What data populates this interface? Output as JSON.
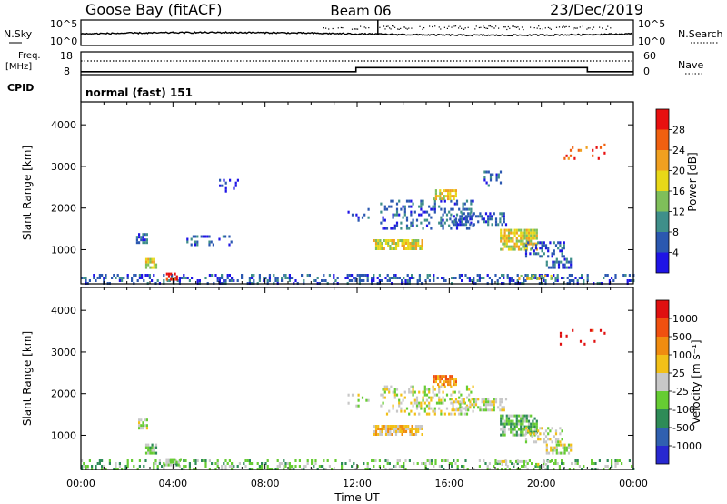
{
  "header": {
    "station": "Goose Bay (fitACF)",
    "beam": "Beam 06",
    "date": "23/Dec/2019"
  },
  "noise_panel": {
    "left_label": "N.Sky",
    "right_label": "N.Search",
    "left_ticks": [
      "10^5",
      "10^0"
    ],
    "right_ticks": [
      "10^5",
      "10^0"
    ]
  },
  "freq_panel": {
    "left_label_line1": "Freq.",
    "left_label_line2": "[MHz]",
    "right_label": "Nave",
    "left_ticks": [
      "18",
      "8"
    ],
    "right_ticks": [
      "60",
      "0"
    ],
    "freq_range": [
      8,
      18
    ],
    "nave_range": [
      0,
      60
    ]
  },
  "cpid": {
    "label": "CPID",
    "value": "normal (fast) 151"
  },
  "time_axis": {
    "label": "Time UT",
    "ticks": [
      "00:00",
      "04:00",
      "08:00",
      "12:00",
      "16:00",
      "20:00",
      "00:00"
    ]
  },
  "chart_data": [
    {
      "type": "heatmap",
      "name": "power",
      "ylabel": "Slant Range [km]",
      "xlabel": "Time UT",
      "xlim_hours": [
        0,
        24
      ],
      "ylim": [
        180,
        4550
      ],
      "yticks": [
        "1000",
        "2000",
        "3000",
        "4000"
      ],
      "colorbar": {
        "label": "Power [dB]",
        "ticks": [
          "4",
          "8",
          "12",
          "16",
          "20",
          "24",
          "28"
        ],
        "range": [
          0,
          32
        ]
      },
      "colors": [
        "#1f14e6",
        "#2b58b0",
        "#3f8f8a",
        "#7fbf5a",
        "#e8d818",
        "#f0a020",
        "#f06010",
        "#e81010"
      ],
      "regions": [
        {
          "t": [
            0.0,
            24.0
          ],
          "r": [
            200,
            420
          ],
          "level": 1,
          "density": 0.35
        },
        {
          "t": [
            2.4,
            2.9
          ],
          "r": [
            1150,
            1400
          ],
          "level": 1,
          "density": 0.5
        },
        {
          "t": [
            2.8,
            3.3
          ],
          "r": [
            600,
            800
          ],
          "level": 4,
          "density": 0.8
        },
        {
          "t": [
            3.7,
            4.2
          ],
          "r": [
            280,
            450
          ],
          "level": 7,
          "density": 0.7
        },
        {
          "t": [
            4.5,
            6.5
          ],
          "r": [
            1150,
            1350
          ],
          "level": 1,
          "density": 0.2
        },
        {
          "t": [
            6.0,
            7.0
          ],
          "r": [
            2400,
            2700
          ],
          "level": 0,
          "density": 0.15
        },
        {
          "t": [
            11.5,
            12.5
          ],
          "r": [
            1700,
            2000
          ],
          "level": 1,
          "density": 0.25
        },
        {
          "t": [
            12.7,
            14.8
          ],
          "r": [
            1000,
            1250
          ],
          "level": 4,
          "density": 0.75
        },
        {
          "t": [
            13.0,
            17.0
          ],
          "r": [
            1500,
            2200
          ],
          "level": 1,
          "density": 0.3
        },
        {
          "t": [
            15.3,
            16.3
          ],
          "r": [
            2200,
            2450
          ],
          "level": 4,
          "density": 0.8
        },
        {
          "t": [
            16.0,
            18.5
          ],
          "r": [
            1600,
            1900
          ],
          "level": 1,
          "density": 0.5
        },
        {
          "t": [
            18.2,
            19.8
          ],
          "r": [
            1000,
            1500
          ],
          "level": 4,
          "density": 0.75
        },
        {
          "t": [
            19.3,
            21.0
          ],
          "r": [
            850,
            1200
          ],
          "level": 1,
          "density": 0.45
        },
        {
          "t": [
            20.2,
            21.3
          ],
          "r": [
            550,
            800
          ],
          "level": 1,
          "density": 0.6
        },
        {
          "t": [
            19.0,
            20.5
          ],
          "r": [
            280,
            400
          ],
          "level": 4,
          "density": 0.4
        },
        {
          "t": [
            17.5,
            18.2
          ],
          "r": [
            2500,
            2900
          ],
          "level": 1,
          "density": 0.3
        },
        {
          "t": [
            20.8,
            22.8
          ],
          "r": [
            3200,
            3550
          ],
          "level": 6,
          "density": 0.12
        }
      ]
    },
    {
      "type": "heatmap",
      "name": "velocity",
      "ylabel": "Slant Range [km]",
      "xlabel": "Time UT",
      "xlim_hours": [
        0,
        24
      ],
      "ylim": [
        180,
        4550
      ],
      "yticks": [
        "1000",
        "2000",
        "3000",
        "4000"
      ],
      "colorbar": {
        "label": "Velocity [m s⁻¹]",
        "ticks": [
          "1000",
          "500",
          "100",
          "25",
          "-25",
          "-100",
          "-500",
          "-1000"
        ]
      },
      "colors": [
        "#2828d0",
        "#3060b0",
        "#2e8b57",
        "#66cc33",
        "#c8c8c8",
        "#f2c018",
        "#f08c10",
        "#f05010",
        "#e01010"
      ],
      "regions": [
        {
          "t": [
            0.0,
            24.0
          ],
          "r": [
            200,
            420
          ],
          "level": 3,
          "density": 0.3
        },
        {
          "t": [
            2.4,
            2.9
          ],
          "r": [
            1150,
            1400
          ],
          "level": 4,
          "density": 0.4
        },
        {
          "t": [
            2.8,
            3.3
          ],
          "r": [
            600,
            800
          ],
          "level": 3,
          "density": 0.8
        },
        {
          "t": [
            3.6,
            4.3
          ],
          "r": [
            300,
            450
          ],
          "level": 3,
          "density": 0.7
        },
        {
          "t": [
            11.5,
            12.5
          ],
          "r": [
            1700,
            2000
          ],
          "level": 4,
          "density": 0.2
        },
        {
          "t": [
            12.7,
            14.8
          ],
          "r": [
            1000,
            1250
          ],
          "level": 5,
          "density": 0.75
        },
        {
          "t": [
            13.0,
            17.0
          ],
          "r": [
            1500,
            2200
          ],
          "level": 4,
          "density": 0.3
        },
        {
          "t": [
            15.3,
            16.3
          ],
          "r": [
            2200,
            2450
          ],
          "level": 6,
          "density": 0.8
        },
        {
          "t": [
            16.0,
            18.5
          ],
          "r": [
            1600,
            1900
          ],
          "level": 4,
          "density": 0.45
        },
        {
          "t": [
            18.2,
            19.8
          ],
          "r": [
            1000,
            1500
          ],
          "level": 3,
          "density": 0.7
        },
        {
          "t": [
            19.3,
            21.0
          ],
          "r": [
            850,
            1200
          ],
          "level": 4,
          "density": 0.4
        },
        {
          "t": [
            20.2,
            21.3
          ],
          "r": [
            550,
            800
          ],
          "level": 4,
          "density": 0.55
        },
        {
          "t": [
            18.0,
            20.5
          ],
          "r": [
            280,
            400
          ],
          "level": 4,
          "density": 0.35
        },
        {
          "t": [
            20.8,
            22.8
          ],
          "r": [
            3200,
            3550
          ],
          "level": 8,
          "density": 0.12
        }
      ]
    }
  ]
}
